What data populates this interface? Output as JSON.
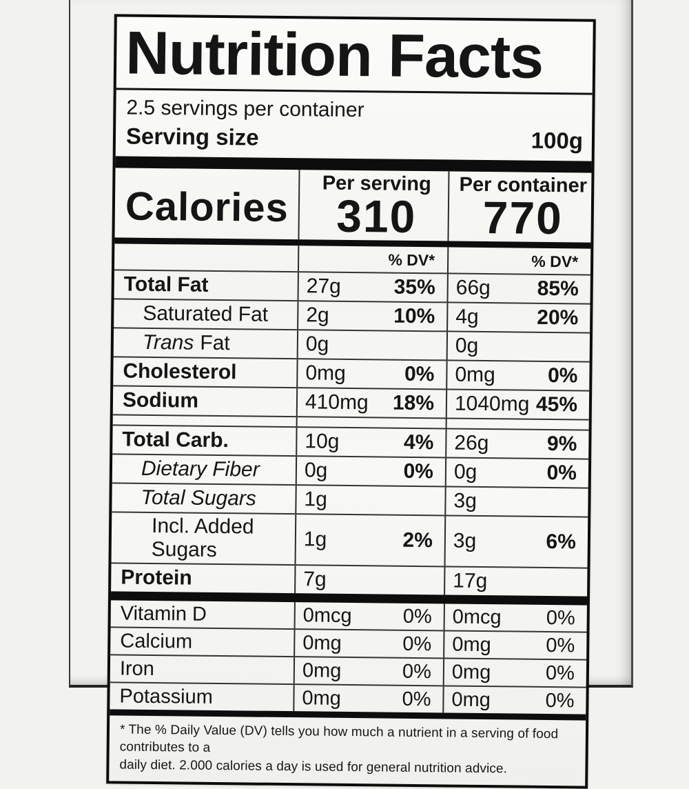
{
  "nutrition_label": {
    "title": "Nutrition Facts",
    "servings_per_container": "2.5 servings per container",
    "serving_size": {
      "label": "Serving size",
      "value": "100g"
    },
    "calories": {
      "label": "Calories",
      "per_serving": {
        "header": "Per serving",
        "value": "310"
      },
      "per_container": {
        "header": "Per container",
        "value": "770"
      }
    },
    "dv_header": "% DV*",
    "rows": [
      {
        "name": "Total Fat",
        "ps_amount": "27g",
        "ps_dv": "35%",
        "pc_amount": "66g",
        "pc_dv": "85%"
      },
      {
        "name": "Saturated Fat",
        "ps_amount": "2g",
        "ps_dv": "10%",
        "pc_amount": "4g",
        "pc_dv": "20%"
      },
      {
        "name_prefix": "Trans",
        "name_suffix": "Fat",
        "ps_amount": "0g",
        "ps_dv": "",
        "pc_amount": "0g",
        "pc_dv": ""
      },
      {
        "name": "Cholesterol",
        "ps_amount": "0mg",
        "ps_dv": "0%",
        "pc_amount": "0mg",
        "pc_dv": "0%"
      },
      {
        "name": "Sodium",
        "ps_amount": "410mg",
        "ps_dv": "18%",
        "pc_amount": "1040mg",
        "pc_dv": "45%"
      },
      {
        "name": "Total Carb.",
        "ps_amount": "10g",
        "ps_dv": "4%",
        "pc_amount": "26g",
        "pc_dv": "9%"
      },
      {
        "name": "Dietary Fiber",
        "ps_amount": "0g",
        "ps_dv": "0%",
        "pc_amount": "0g",
        "pc_dv": "0%"
      },
      {
        "name": "Total Sugars",
        "ps_amount": "1g",
        "ps_dv": "",
        "pc_amount": "3g",
        "pc_dv": ""
      },
      {
        "name": "Incl. Added Sugars",
        "ps_amount": "1g",
        "ps_dv": "2%",
        "pc_amount": "3g",
        "pc_dv": "6%"
      },
      {
        "name": "Protein",
        "ps_amount": "7g",
        "ps_dv": "",
        "pc_amount": "17g",
        "pc_dv": ""
      }
    ],
    "vitamins": [
      {
        "name": "Vitamin D",
        "ps_amount": "0mcg",
        "ps_dv": "0%",
        "pc_amount": "0mcg",
        "pc_dv": "0%"
      },
      {
        "name": "Calcium",
        "ps_amount": "0mg",
        "ps_dv": "0%",
        "pc_amount": "0mg",
        "pc_dv": "0%"
      },
      {
        "name": "Iron",
        "ps_amount": "0mg",
        "ps_dv": "0%",
        "pc_amount": "0mg",
        "pc_dv": "0%"
      },
      {
        "name": "Potassium",
        "ps_amount": "0mg",
        "ps_dv": "0%",
        "pc_amount": "0mg",
        "pc_dv": "0%"
      }
    ],
    "footnote": {
      "line1": "* The % Daily Value (DV) tells you how much a nutrient in a serving of food contributes to a",
      "line2": "daily diet. 2.000 calories a day is used for general nutrition advice."
    },
    "colors": {
      "ink": "#0d0d0d",
      "paper": "#f6f6f3"
    }
  }
}
